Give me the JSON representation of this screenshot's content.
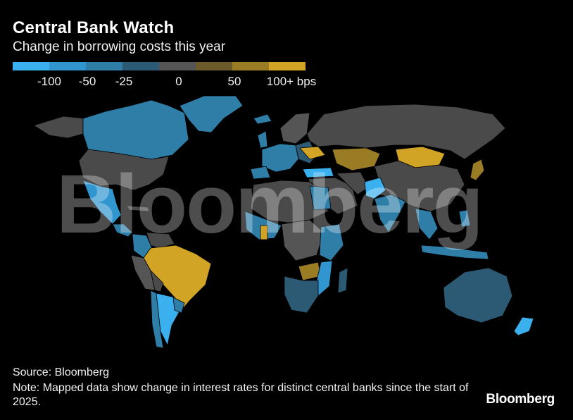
{
  "header": {
    "title": "Central Bank Watch",
    "subtitle": "Change in borrowing costs this year"
  },
  "legend": {
    "colors": [
      "#3bb0ee",
      "#3196cf",
      "#2f7ea8",
      "#2c5a74",
      "#555555",
      "#6b5a2a",
      "#9a7c25",
      "#d1a426"
    ],
    "labels": [
      "-100",
      "-50",
      "-25",
      "0",
      "50",
      "100+ bps"
    ]
  },
  "map": {
    "watermark": "Bloomberg",
    "colors": {
      "no_data": "#4a4a4a",
      "cut_100": "#3bb0ee",
      "cut_50": "#3196cf",
      "cut_25": "#2f7ea8",
      "cut_small": "#2c5a74",
      "zero": "#555555",
      "hike_50": "#9a7c25",
      "hike_100": "#d1a426"
    }
  },
  "footer": {
    "source": "Source: Bloomberg",
    "note": "Note: Mapped data show change in interest rates for distinct central banks since the start of 2025.",
    "brand": "Bloomberg"
  }
}
